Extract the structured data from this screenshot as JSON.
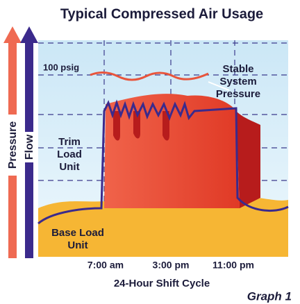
{
  "title": "Typical Compressed Air Usage",
  "axes": {
    "pressure": "Pressure",
    "flow": "Flow",
    "x_label": "24-Hour Shift Cycle",
    "x_ticks": [
      "7:00 am",
      "3:00 pm",
      "11:00 pm"
    ]
  },
  "annotations": {
    "psig": "100 psig",
    "stable": [
      "Stable",
      "System",
      "Pressure"
    ],
    "trim": [
      "Trim",
      "Load",
      "Unit"
    ],
    "base": [
      "Base Load",
      "Unit"
    ]
  },
  "graph_label": "Graph 1"
}
